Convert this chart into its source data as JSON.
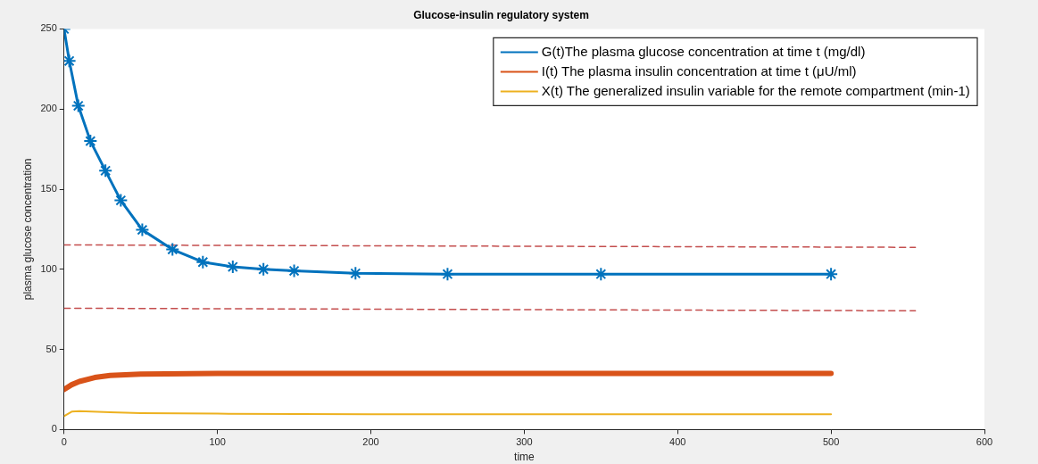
{
  "chart_data": {
    "type": "line",
    "title": "Glucose-insulin regulatory system",
    "xlabel": "time",
    "ylabel": "plasma glucose concentration",
    "xlim": [
      0,
      600
    ],
    "xticks": [
      0,
      100,
      200,
      300,
      400,
      500,
      600
    ],
    "ylim": [
      0,
      250
    ],
    "yticks": [
      0,
      50,
      100,
      150,
      200,
      250
    ],
    "grid": false,
    "legend": "top right",
    "series": [
      {
        "name": "G(t)The plasma glucose concentration at time t (mg/dl)",
        "color": "#0072bd",
        "marker": "cross",
        "x": [
          0,
          3.4,
          9.3,
          17.2,
          27,
          37,
          51,
          70.7,
          90.5,
          110,
          130,
          150,
          190,
          250,
          350,
          500
        ],
        "values": [
          250,
          230,
          202,
          180,
          161.5,
          143,
          124.6,
          112.4,
          104.5,
          101.5,
          100,
          99,
          97.5,
          97,
          97,
          97
        ]
      },
      {
        "name": "I(t) The plasma insulin concentration at time t (μU/ml)",
        "color": "#d95319",
        "x": [
          0,
          5,
          10,
          20,
          30,
          50,
          100,
          200,
          500
        ],
        "values": [
          25,
          28,
          30,
          32.5,
          33.8,
          34.6,
          35,
          35,
          35
        ]
      },
      {
        "name": "X(t) The generalized insulin variable for the remote compartment (min-1)",
        "color": "#edb120",
        "x": [
          0,
          5,
          10,
          30,
          50,
          100,
          200,
          500
        ],
        "values": [
          8.4,
          11.2,
          11.5,
          10.8,
          10.3,
          9.9,
          9.6,
          9.5
        ]
      },
      {
        "color": "#c44e4e",
        "line_style": "dashed",
        "x": [
          0,
          555
        ],
        "values": [
          115.2,
          113.7
        ]
      },
      {
        "color": "#c44e4e",
        "line_style": "dashed",
        "x": [
          0,
          555
        ],
        "values": [
          75.7,
          74.1
        ]
      }
    ]
  }
}
